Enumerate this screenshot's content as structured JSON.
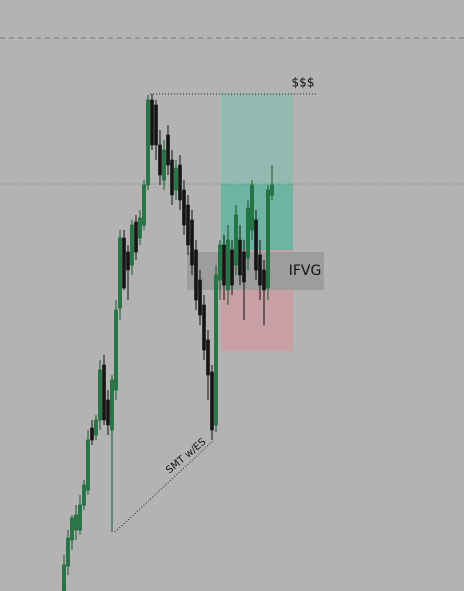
{
  "annotations": {
    "target": "$$$",
    "gap": "IFVG",
    "divergence": "SMT w/ES"
  }
}
